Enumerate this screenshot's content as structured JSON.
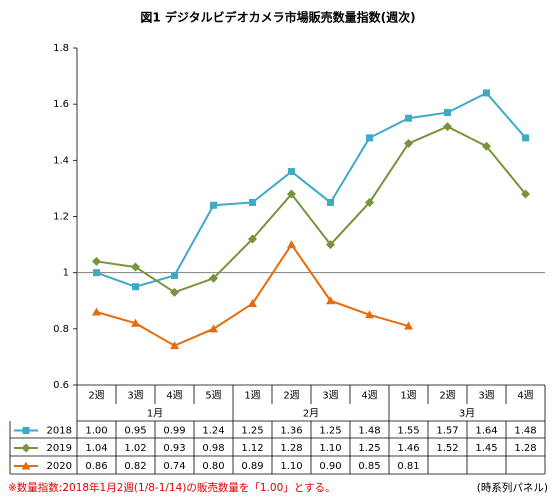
{
  "chart_data": {
    "type": "line",
    "title": "図1 デジタルビデオカメラ市場販売数量指数(週次)",
    "groups": [
      {
        "label": "1月",
        "categories": [
          "2週",
          "3週",
          "4週",
          "5週"
        ]
      },
      {
        "label": "2月",
        "categories": [
          "1週",
          "2週",
          "3週",
          "4週"
        ]
      },
      {
        "label": "3月",
        "categories": [
          "1週",
          "2週",
          "3週",
          "4週"
        ]
      }
    ],
    "series": [
      {
        "name": "2018",
        "color": "#3fa9c6",
        "marker": "square",
        "values": [
          1.0,
          0.95,
          0.99,
          1.24,
          1.25,
          1.36,
          1.25,
          1.48,
          1.55,
          1.57,
          1.64,
          1.48
        ],
        "value_labels": [
          "1.00",
          "0.95",
          "0.99",
          "1.24",
          "1.25",
          "1.36",
          "1.25",
          "1.48",
          "1.55",
          "1.57",
          "1.64",
          "1.48"
        ]
      },
      {
        "name": "2019",
        "color": "#77933c",
        "marker": "diamond",
        "values": [
          1.04,
          1.02,
          0.93,
          0.98,
          1.12,
          1.28,
          1.1,
          1.25,
          1.46,
          1.52,
          1.45,
          1.28
        ],
        "value_labels": [
          "1.04",
          "1.02",
          "0.93",
          "0.98",
          "1.12",
          "1.28",
          "1.10",
          "1.25",
          "1.46",
          "1.52",
          "1.45",
          "1.28"
        ]
      },
      {
        "name": "2020",
        "color": "#e46c0a",
        "marker": "triangle",
        "values": [
          0.86,
          0.82,
          0.74,
          0.8,
          0.89,
          1.1,
          0.9,
          0.85,
          0.81,
          null,
          null,
          null
        ],
        "value_labels": [
          "0.86",
          "0.82",
          "0.74",
          "0.80",
          "0.89",
          "1.10",
          "0.90",
          "0.85",
          "0.81",
          null,
          null,
          null
        ]
      }
    ],
    "ylim": [
      0.6,
      1.8
    ],
    "yticks": [
      0.6,
      0.8,
      1,
      1.2,
      1.4,
      1.6,
      1.8
    ],
    "reference_line": 1,
    "footnote": "※数量指数:2018年1月2週(1/8-1/14)の販売数量を「1.00」とする。",
    "source": "(時系列パネル)"
  }
}
